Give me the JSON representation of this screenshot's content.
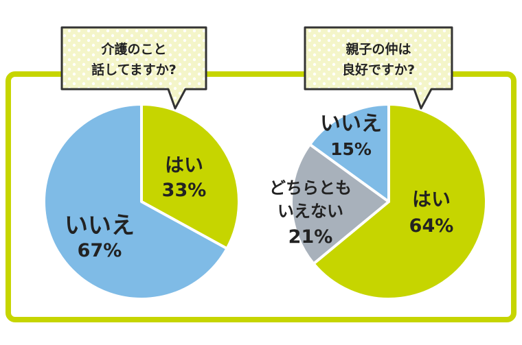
{
  "colors": {
    "frame": "#c6d500",
    "yes": "#c6d500",
    "no": "#7fbbe6",
    "neither": "#a8b1bb",
    "bubble_fill": "#f4f5c9",
    "bubble_dot": "#ffffff",
    "outline": "#333333",
    "text": "#222222"
  },
  "chart_data": [
    {
      "type": "pie",
      "title_lines": [
        "介護のこと",
        "話してますか?"
      ],
      "slices": [
        {
          "label": "はい",
          "value": 33,
          "pct_label": "33%",
          "color": "#c6d500"
        },
        {
          "label": "いいえ",
          "value": 67,
          "pct_label": "67%",
          "color": "#7fbbe6"
        }
      ]
    },
    {
      "type": "pie",
      "title_lines": [
        "親子の仲は",
        "良好ですか?"
      ],
      "slices": [
        {
          "label": "はい",
          "value": 64,
          "pct_label": "64%",
          "color": "#c6d500"
        },
        {
          "label_lines": [
            "どちらとも",
            "いえない"
          ],
          "value": 21,
          "pct_label": "21%",
          "color": "#a8b1bb"
        },
        {
          "label": "いいえ",
          "value": 15,
          "pct_label": "15%",
          "color": "#7fbbe6"
        }
      ]
    }
  ]
}
